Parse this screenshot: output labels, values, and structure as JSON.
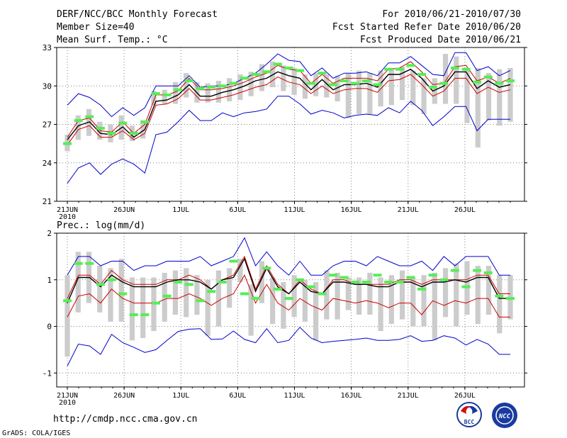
{
  "header": {
    "title": "DERF/NCC/BCC Monthly Forecast",
    "member_size": "Member Size=40",
    "variable": "Mean Surf. Temp.: °C",
    "forecast_period": "For 2010/06/21-2010/07/30",
    "refer_date": "Fcst Started Refer Date 2010/06/20",
    "produced_date": "Fcst Produced Date 2010/06/21"
  },
  "footer": {
    "url": "http://cmdp.ncc.cma.gov.cn",
    "credit": "GrADS: COLA/IGES",
    "logo_bcc_text": "BCC",
    "logo_ncc_text": "NCC"
  },
  "colors": {
    "envelope": "#0000cc",
    "percentile_line": "#cc0000",
    "ensemble_mean": "#000000",
    "box": "#cccccc",
    "median_marker": "#55ee55",
    "grid": "#808080"
  },
  "chart_data": [
    {
      "type": "line",
      "name": "temperature",
      "title": "Mean Surf. Temp.: °C",
      "xlabel": "",
      "ylabel": "°C",
      "ylim": [
        21,
        33
      ],
      "yticks": [
        21,
        24,
        27,
        30,
        33
      ],
      "x_start_day": 1,
      "x_end_day": 40,
      "xticks": [
        {
          "day": 1,
          "label": "21JUN",
          "sublabel": "2010"
        },
        {
          "day": 6,
          "label": "26JUN"
        },
        {
          "day": 11,
          "label": "1JUL"
        },
        {
          "day": 16,
          "label": "6JUL"
        },
        {
          "day": 21,
          "label": "11JUL"
        },
        {
          "day": 26,
          "label": "16JUL"
        },
        {
          "day": 31,
          "label": "21JUL"
        },
        {
          "day": 36,
          "label": "26JUL"
        }
      ],
      "grid": true,
      "series": [
        {
          "name": "max",
          "values": [
            28.5,
            29.4,
            29.1,
            28.5,
            27.6,
            28.3,
            27.7,
            28.3,
            30,
            30,
            30,
            30.8,
            29.9,
            30,
            30,
            30.2,
            30.6,
            31,
            31.7,
            32.5,
            32,
            31.9,
            30.8,
            31.4,
            30.6,
            31,
            31,
            31.1,
            30.8,
            31.8,
            31.8,
            32.3,
            31.6,
            30.9,
            30.8,
            32.6,
            32.6,
            31.2,
            31.5,
            30.8,
            31.2
          ]
        },
        {
          "name": "upper",
          "values": [
            26,
            27.3,
            27.5,
            26.5,
            26.4,
            27.2,
            26.3,
            27,
            29.3,
            29.3,
            29.6,
            30.6,
            29.7,
            29.7,
            29.8,
            30,
            30.3,
            30.7,
            31,
            31.6,
            31.3,
            31.2,
            30.2,
            30.9,
            30.2,
            30.6,
            30.6,
            30.6,
            30.4,
            31.3,
            31.4,
            31.9,
            31.1,
            30.1,
            30.2,
            31.5,
            31.6,
            30.4,
            30.7,
            30.2,
            30.6
          ]
        },
        {
          "name": "mean",
          "values": [
            25.8,
            26.9,
            27.2,
            26.3,
            26.2,
            26.8,
            26,
            26.6,
            28.8,
            28.9,
            29.3,
            30.1,
            29.2,
            29.2,
            29.5,
            29.7,
            30,
            30.4,
            30.6,
            31.1,
            30.8,
            30.6,
            29.7,
            30.5,
            29.7,
            30.1,
            30.1,
            30.2,
            29.9,
            30.9,
            30.9,
            31.3,
            30.6,
            29.6,
            30,
            31.1,
            31.1,
            29.8,
            30.4,
            29.9,
            30.1
          ]
        },
        {
          "name": "lower",
          "values": [
            25.4,
            26.6,
            26.9,
            26,
            26,
            26.5,
            25.8,
            26.3,
            28.5,
            28.6,
            29,
            29.8,
            28.9,
            28.9,
            29.1,
            29.3,
            29.6,
            29.9,
            30.1,
            30.7,
            30.3,
            30.1,
            29.4,
            30,
            29.4,
            29.7,
            29.8,
            29.8,
            29.5,
            30.4,
            30.5,
            30.9,
            30.1,
            29.2,
            29.6,
            30.6,
            30.6,
            29.4,
            29.9,
            29.5,
            29.7
          ]
        },
        {
          "name": "min",
          "values": [
            22.4,
            23.6,
            24,
            23.1,
            23.9,
            24.3,
            23.9,
            23.2,
            26.2,
            26.4,
            27.2,
            28.1,
            27.3,
            27.3,
            27.9,
            27.6,
            27.9,
            28,
            28.2,
            29.2,
            29.2,
            28.6,
            27.8,
            28.1,
            27.9,
            27.5,
            27.7,
            27.8,
            27.7,
            28.3,
            27.9,
            28.8,
            28.1,
            26.9,
            27.6,
            28.4,
            28.4,
            26.5,
            27.4,
            27.4,
            27.4
          ]
        }
      ],
      "boxes_low": [
        24.9,
        25.8,
        26.1,
        25.8,
        25.6,
        25.8,
        25.7,
        25.9,
        28.5,
        28.6,
        28.6,
        29.1,
        28.7,
        28.7,
        28.7,
        28.8,
        28.9,
        29.2,
        29.6,
        29.9,
        29.6,
        29.3,
        29,
        29.2,
        29.1,
        28.8,
        27.5,
        27.8,
        27.8,
        28.4,
        28.5,
        28.9,
        28.5,
        27.8,
        28.6,
        28.6,
        28.6,
        27.1,
        25.2,
        27.3,
        26.9,
        27.2
      ],
      "boxes_high": [
        26.2,
        27.7,
        28.2,
        27.2,
        27,
        27.7,
        26.9,
        27.3,
        29.6,
        29.7,
        30.3,
        31,
        30.3,
        30.2,
        30.4,
        30.6,
        30.9,
        31.1,
        31.7,
        31.9,
        31.6,
        31.4,
        30.9,
        31,
        30.9,
        30.8,
        31,
        31.2,
        31,
        31.2,
        31.3,
        31.5,
        31.2,
        30.6,
        30.6,
        32.5,
        32.3,
        31.2,
        31.4,
        31,
        31.3,
        31.4
      ],
      "medians": [
        25.5,
        27.3,
        27.6,
        26.7,
        26.3,
        27.1,
        26.3,
        27.2,
        29.4,
        29.3,
        29.7,
        30.4,
        29.8,
        29.9,
        30,
        30.2,
        30.6,
        30.9,
        31.1,
        31.7,
        31.4,
        31.2,
        30.2,
        31,
        30.1,
        30.4,
        30.2,
        30.4,
        30.1,
        31.3,
        31.3,
        31.6,
        30.9,
        29.9,
        30.2,
        31.4,
        31.3,
        30.3,
        30.7,
        30.2,
        30.4
      ]
    },
    {
      "type": "line",
      "name": "precipitation",
      "title": "Prec.: log(mm/d)",
      "xlabel": "",
      "ylabel": "log(mm/d)",
      "ylim": [
        -1.3,
        2.0
      ],
      "yticks": [
        -1,
        0,
        1,
        2
      ],
      "x_start_day": 1,
      "x_end_day": 40,
      "xticks": [
        {
          "day": 1,
          "label": "21JUN",
          "sublabel": "2010"
        },
        {
          "day": 6,
          "label": "26JUN"
        },
        {
          "day": 11,
          "label": "1JUL"
        },
        {
          "day": 16,
          "label": "6JUL"
        },
        {
          "day": 21,
          "label": "11JUL"
        },
        {
          "day": 26,
          "label": "16JUL"
        },
        {
          "day": 31,
          "label": "21JUL"
        },
        {
          "day": 36,
          "label": "26JUL"
        }
      ],
      "grid": true,
      "series": [
        {
          "name": "max",
          "values": [
            1.1,
            1.5,
            1.5,
            1.3,
            1.4,
            1.4,
            1.2,
            1.3,
            1.3,
            1.4,
            1.4,
            1.4,
            1.5,
            1.3,
            1.4,
            1.5,
            1.9,
            1.3,
            1.6,
            1.3,
            1.1,
            1.4,
            1.1,
            1.1,
            1.3,
            1.4,
            1.4,
            1.3,
            1.5,
            1.4,
            1.3,
            1.3,
            1.4,
            1.2,
            1.5,
            1.3,
            1.5,
            1.5,
            1.5,
            1.1,
            1.1
          ]
        },
        {
          "name": "upper",
          "values": [
            0.6,
            1.1,
            1.1,
            0.9,
            1.2,
            1,
            0.9,
            0.9,
            0.9,
            1,
            1,
            1.1,
            1,
            0.8,
            1,
            1.1,
            1.5,
            0.8,
            1.3,
            0.9,
            0.7,
            1,
            0.8,
            0.7,
            1,
            1,
            0.9,
            0.9,
            0.9,
            0.9,
            1,
            1,
            0.9,
            1,
            1,
            1,
            1,
            1.1,
            1.1,
            0.7,
            0.7
          ]
        },
        {
          "name": "mean",
          "values": [
            0.5,
            1.05,
            1.05,
            0.85,
            1.1,
            0.95,
            0.85,
            0.85,
            0.85,
            0.95,
            1,
            1,
            0.95,
            0.8,
            1,
            1.05,
            1.45,
            0.75,
            1.25,
            0.85,
            0.7,
            0.95,
            0.75,
            0.7,
            0.95,
            0.95,
            0.9,
            0.9,
            0.85,
            0.85,
            0.95,
            0.95,
            0.85,
            0.95,
            0.95,
            1,
            0.95,
            1.05,
            1.05,
            0.6,
            0.6
          ]
        },
        {
          "name": "lower",
          "values": [
            0.2,
            0.65,
            0.7,
            0.5,
            0.8,
            0.6,
            0.5,
            0.5,
            0.5,
            0.6,
            0.6,
            0.7,
            0.6,
            0.45,
            0.6,
            0.7,
            1.1,
            0.5,
            0.9,
            0.5,
            0.35,
            0.6,
            0.45,
            0.35,
            0.6,
            0.55,
            0.5,
            0.55,
            0.5,
            0.4,
            0.5,
            0.5,
            0.25,
            0.55,
            0.45,
            0.55,
            0.5,
            0.6,
            0.6,
            0.2,
            0.2
          ]
        },
        {
          "name": "min",
          "values": [
            -0.85,
            -0.38,
            -0.42,
            -0.6,
            -0.17,
            -0.35,
            -0.45,
            -0.56,
            -0.5,
            -0.3,
            -0.11,
            -0.06,
            -0.05,
            -0.28,
            -0.27,
            -0.1,
            -0.28,
            -0.35,
            -0.05,
            -0.35,
            -0.3,
            -0.02,
            -0.25,
            -0.35,
            -0.32,
            -0.3,
            -0.28,
            -0.25,
            -0.3,
            -0.3,
            -0.28,
            -0.2,
            -0.32,
            -0.3,
            -0.2,
            -0.25,
            -0.4,
            -0.28,
            -0.38,
            -0.6,
            -0.6
          ]
        }
      ],
      "boxes_low": [
        -0.65,
        0.3,
        0.5,
        0.3,
        0.1,
        0.1,
        -0.3,
        -0.25,
        -0.1,
        0.1,
        0.25,
        0.2,
        0.25,
        -0.2,
        0,
        0.4,
        0.95,
        -0.2,
        0.5,
        0.05,
        -0.05,
        0.2,
        0.1,
        -0.3,
        0.15,
        0.15,
        0.35,
        0.25,
        0.25,
        -0.1,
        0.05,
        0.15,
        0.0,
        0.0,
        -0.3,
        0.2,
        0,
        0.25,
        0.05,
        0.25,
        -0.15,
        0.15
      ],
      "boxes_high": [
        1.1,
        1.6,
        1.6,
        1.3,
        1.25,
        1.45,
        1.05,
        1.05,
        1.05,
        1.15,
        1.2,
        1.25,
        1.1,
        1,
        1.2,
        1.25,
        1.45,
        0.9,
        1.4,
        1.05,
        0.95,
        1.1,
        1,
        0.95,
        1.2,
        1.15,
        1.05,
        1.05,
        1.15,
        1.05,
        1.1,
        1.2,
        1.05,
        1.1,
        1.15,
        1.25,
        1.35,
        1.4,
        1.3,
        1.3,
        1.1,
        1.1
      ],
      "medians": [
        0.55,
        1.35,
        1.35,
        0.9,
        1,
        0.7,
        0.25,
        0.25,
        0.5,
        0.65,
        0.95,
        0.9,
        0.55,
        0.75,
        0.95,
        1.4,
        0.7,
        0.6,
        1.25,
        0.8,
        0.6,
        1,
        0.85,
        0.7,
        1.1,
        1.05,
        0.95,
        0.95,
        1.1,
        0.95,
        0.95,
        1.05,
        0.8,
        1.1,
        1.0,
        1.2,
        0.85,
        1.2,
        1.15,
        0.65,
        0.6
      ]
    }
  ]
}
